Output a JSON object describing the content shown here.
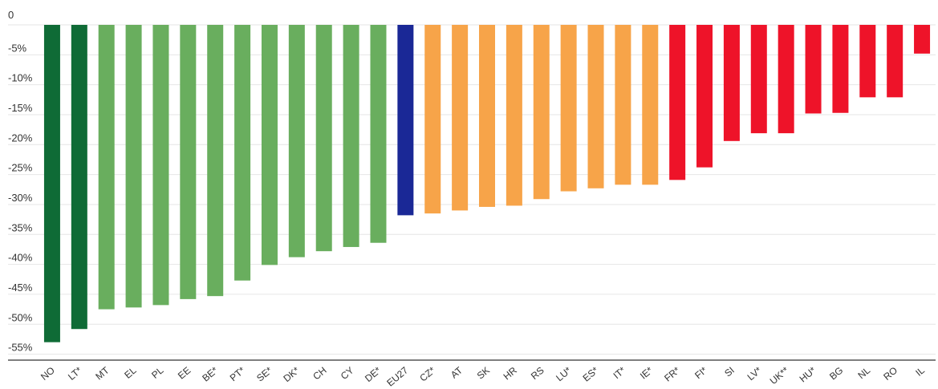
{
  "chart_data": {
    "type": "bar",
    "title": "",
    "xlabel": "",
    "ylabel": "",
    "ylim": [
      -57,
      0
    ],
    "yticks": [
      "0",
      "-5%",
      "-10%",
      "-15%",
      "-20%",
      "-25%",
      "-30%",
      "-35%",
      "-40%",
      "-45%",
      "-50%",
      "-55%"
    ],
    "ytick_values": [
      0,
      -5,
      -10,
      -15,
      -20,
      -25,
      -30,
      -35,
      -40,
      -45,
      -50,
      -55
    ],
    "grid": true,
    "legend": "none",
    "categories": [
      "NO",
      "LT*",
      "MT",
      "EL",
      "PL",
      "EE",
      "BE*",
      "PT*",
      "SE*",
      "DK*",
      "CH",
      "CY",
      "DE*",
      "EU27",
      "CZ*",
      "AT",
      "SK",
      "HR",
      "RS",
      "LU*",
      "ES*",
      "IT*",
      "IE*",
      "FR*",
      "FI*",
      "SI",
      "LV*",
      "UK**",
      "HU*",
      "BG",
      "NL",
      "RO",
      "IL"
    ],
    "values": [
      -53,
      -50.8,
      -47.5,
      -47.2,
      -46.8,
      -45.8,
      -45.3,
      -42.7,
      -40.1,
      -38.8,
      -37.8,
      -37.1,
      -36.4,
      -31.8,
      -31.5,
      -31,
      -30.4,
      -30.2,
      -29.1,
      -27.8,
      -27.3,
      -26.7,
      -26.7,
      -25.9,
      -23.8,
      -19.4,
      -18.1,
      -18.1,
      -14.8,
      -14.7,
      -12.1,
      -12.1,
      -4.8
    ],
    "colors": [
      "#0f6b36",
      "#0f6b36",
      "#69ae5e",
      "#69ae5e",
      "#69ae5e",
      "#69ae5e",
      "#69ae5e",
      "#69ae5e",
      "#69ae5e",
      "#69ae5e",
      "#69ae5e",
      "#69ae5e",
      "#69ae5e",
      "#1a2896",
      "#f7a449",
      "#f7a449",
      "#f7a449",
      "#f7a449",
      "#f7a449",
      "#f7a449",
      "#f7a449",
      "#f7a449",
      "#f7a449",
      "#ee1329",
      "#ee1329",
      "#ee1329",
      "#ee1329",
      "#ee1329",
      "#ee1329",
      "#ee1329",
      "#ee1329",
      "#ee1329",
      "#ee1329"
    ]
  }
}
